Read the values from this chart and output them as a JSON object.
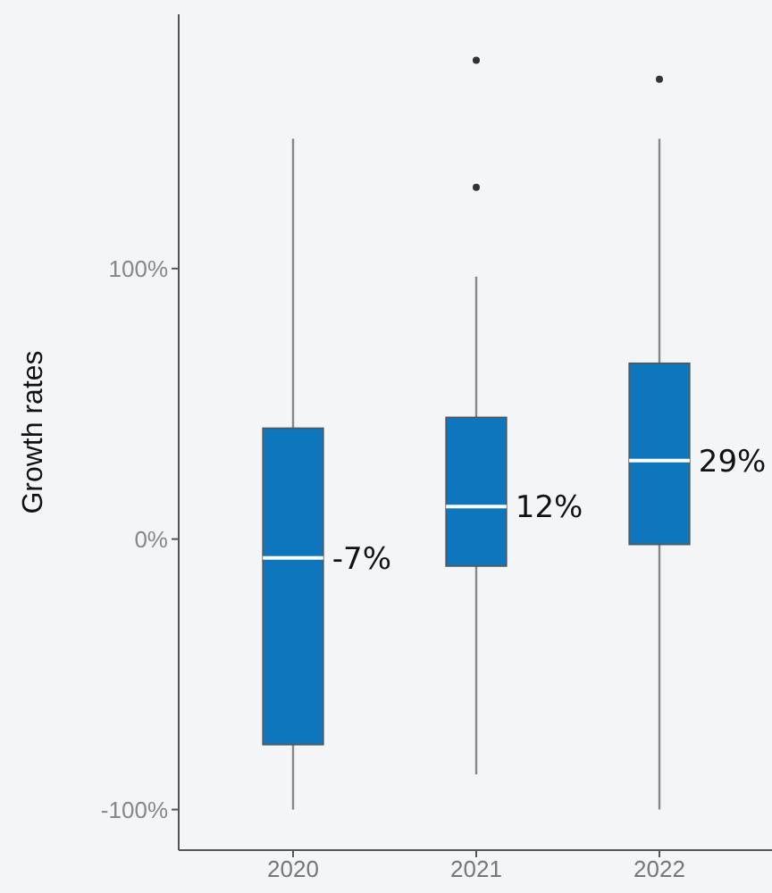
{
  "chart_data": {
    "type": "box",
    "ylabel": "Growth rates",
    "categories": [
      "2020",
      "2021",
      "2022"
    ],
    "boxes": [
      {
        "low": -100,
        "q1": -76,
        "median": -7,
        "q3": 41,
        "high": 148
      },
      {
        "low": -87,
        "q1": -10,
        "median": 12,
        "q3": 45,
        "high": 97,
        "outliers": [
          130,
          177
        ]
      },
      {
        "low": -100,
        "q1": -2,
        "median": 29,
        "q3": 65,
        "high": 148,
        "outliers": [
          170
        ]
      }
    ],
    "color": "#0e76bc",
    "value_labels": [
      "-7%",
      "12%",
      "29%"
    ],
    "ylim": [
      -115,
      194
    ],
    "yticks": [
      {
        "value": -100,
        "label": "-100%"
      },
      {
        "value": 0,
        "label": "0%"
      },
      {
        "value": 100,
        "label": "100%"
      }
    ],
    "grid": false
  }
}
